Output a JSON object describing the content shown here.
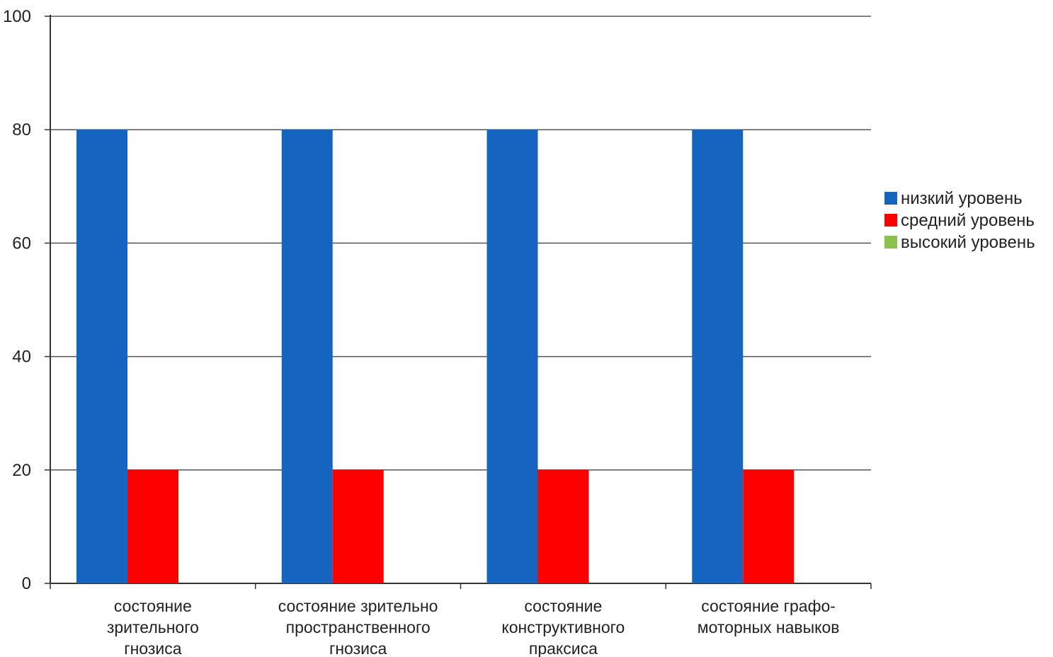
{
  "chart_data": {
    "type": "bar",
    "title": "",
    "xlabel": "",
    "ylabel": "",
    "ylim": [
      0,
      100
    ],
    "yticks": [
      0,
      20,
      40,
      60,
      80,
      100
    ],
    "grid": true,
    "legend_position": "right",
    "categories": [
      [
        "состояние",
        "зрительного",
        "гнозиса"
      ],
      [
        "состояние зрительно",
        "пространственного",
        "гнозиса"
      ],
      [
        "состояние",
        "конструктивного",
        "праксиса"
      ],
      [
        "состояние графо-",
        "моторных навыков"
      ]
    ],
    "series": [
      {
        "name": "низкий уровень",
        "color": "#1565C0",
        "values": [
          80,
          80,
          80,
          80
        ]
      },
      {
        "name": "средний уровень",
        "color": "#FF0000",
        "values": [
          20,
          20,
          20,
          20
        ]
      },
      {
        "name": "высокий уровень",
        "color": "#8BC34A",
        "values": [
          0,
          0,
          0,
          0
        ]
      }
    ]
  }
}
